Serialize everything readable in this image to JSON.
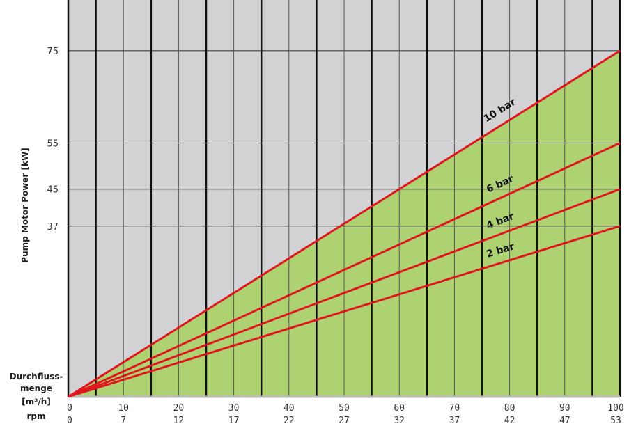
{
  "chart_data": {
    "type": "line",
    "title": "",
    "xlabel": "Durchfluss-menge [m³/h]",
    "xlabel_lines": [
      "Durchfluss-",
      "menge",
      "[m³/h]"
    ],
    "rpm_label": "rpm",
    "ylabel": "Pump Motor Power [kW]",
    "xlim": [
      0,
      100
    ],
    "ylim": [
      0,
      86
    ],
    "x_ticks": [
      "0",
      "10",
      "20",
      "30",
      "40",
      "50",
      "60",
      "70",
      "80",
      "90",
      "100"
    ],
    "rpm_ticks": [
      "0",
      "7",
      "12",
      "17",
      "22",
      "27",
      "32",
      "37",
      "42",
      "47",
      "53"
    ],
    "y_ticks": [
      37,
      45,
      55,
      75
    ],
    "grid": true,
    "series": [
      {
        "name": "10 bar",
        "x": [
          0,
          100
        ],
        "y": [
          0,
          75
        ]
      },
      {
        "name": "6 bar",
        "x": [
          0,
          100
        ],
        "y": [
          0,
          55
        ]
      },
      {
        "name": "4 bar",
        "x": [
          0,
          100
        ],
        "y": [
          0,
          45
        ]
      },
      {
        "name": "2 bar",
        "x": [
          0,
          100
        ],
        "y": [
          0,
          37
        ]
      }
    ],
    "colors": {
      "background": "#d2d2d4",
      "fill": "#aed271",
      "line": "#e0161e",
      "major_grid": "#111111",
      "minor_grid": "#555555"
    }
  }
}
